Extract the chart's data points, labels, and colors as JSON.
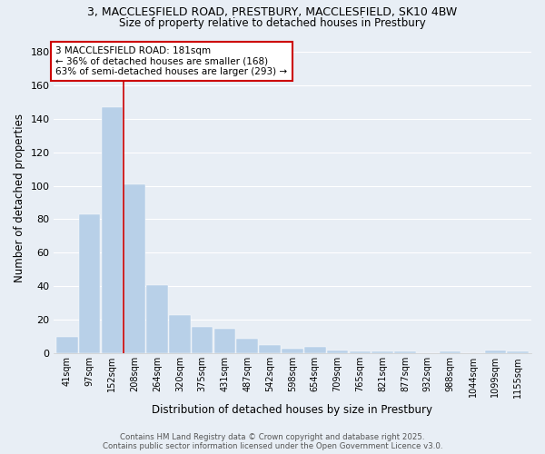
{
  "title_line1": "3, MACCLESFIELD ROAD, PRESTBURY, MACCLESFIELD, SK10 4BW",
  "title_line2": "Size of property relative to detached houses in Prestbury",
  "xlabel": "Distribution of detached houses by size in Prestbury",
  "ylabel": "Number of detached properties",
  "bar_color": "#b8d0e8",
  "bar_edge_color": "#b8d0e8",
  "background_color": "#e8eef5",
  "grid_color": "#ffffff",
  "categories": [
    "41sqm",
    "97sqm",
    "152sqm",
    "208sqm",
    "264sqm",
    "320sqm",
    "375sqm",
    "431sqm",
    "487sqm",
    "542sqm",
    "598sqm",
    "654sqm",
    "709sqm",
    "765sqm",
    "821sqm",
    "877sqm",
    "932sqm",
    "988sqm",
    "1044sqm",
    "1099sqm",
    "1155sqm"
  ],
  "values": [
    10,
    83,
    147,
    101,
    41,
    23,
    16,
    15,
    9,
    5,
    3,
    4,
    2,
    1,
    1,
    1,
    0,
    1,
    0,
    2,
    1
  ],
  "vline_x": 2.5,
  "ylim": [
    0,
    185
  ],
  "yticks": [
    0,
    20,
    40,
    60,
    80,
    100,
    120,
    140,
    160,
    180
  ],
  "annotation_line1": "3 MACCLESFIELD ROAD: 181sqm",
  "annotation_line2": "← 36% of detached houses are smaller (168)",
  "annotation_line3": "63% of semi-detached houses are larger (293) →",
  "annotation_box_color": "#ffffff",
  "annotation_box_edge": "#cc0000",
  "vline_color": "#cc0000",
  "footer_line1": "Contains HM Land Registry data © Crown copyright and database right 2025.",
  "footer_line2": "Contains public sector information licensed under the Open Government Licence v3.0."
}
